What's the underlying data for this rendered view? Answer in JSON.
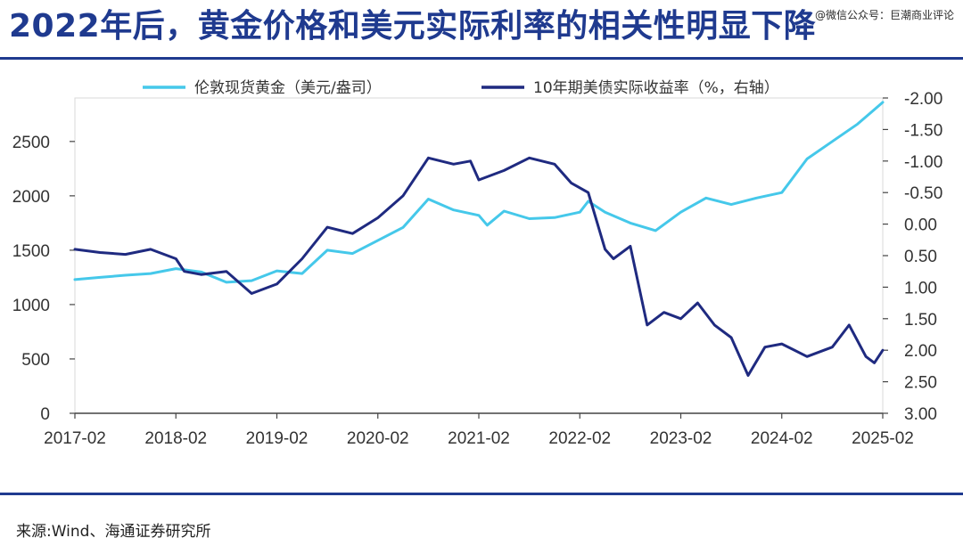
{
  "title": "2022年后，黄金价格和美元实际利率的相关性明显下降",
  "watermark": "@微信公众号：巨潮商业评论",
  "source": "来源:Wind、海通证券研究所",
  "colors": {
    "gold": "#45c8ea",
    "rate": "#1f2a80",
    "title": "#1f3a8f",
    "rule": "#1f3a8f"
  },
  "chart_data": {
    "type": "line",
    "legend_position": "top",
    "grid": false,
    "x_ticks": [
      "2017-02",
      "2018-02",
      "2019-02",
      "2020-02",
      "2021-02",
      "2022-02",
      "2023-02",
      "2024-02",
      "2025-02"
    ],
    "x_range": [
      "2017-02",
      "2025-02"
    ],
    "y_left": {
      "ticks": [
        "0",
        "500",
        "1000",
        "1500",
        "2000",
        "2500"
      ],
      "range": [
        0,
        2900
      ]
    },
    "y_right": {
      "ticks": [
        "-2.00",
        "-1.50",
        "-1.00",
        "-0.50",
        "0.00",
        "0.50",
        "1.00",
        "1.50",
        "2.00",
        "2.50",
        "3.00"
      ],
      "range": [
        -2.0,
        3.0
      ],
      "inverted": true
    },
    "series": [
      {
        "name": "伦敦现货黄金（美元/盎司）",
        "axis": "left",
        "color": "#45c8ea",
        "points": [
          [
            "2017-02",
            1230
          ],
          [
            "2017-05",
            1250
          ],
          [
            "2017-08",
            1270
          ],
          [
            "2017-11",
            1285
          ],
          [
            "2018-02",
            1330
          ],
          [
            "2018-05",
            1300
          ],
          [
            "2018-08",
            1205
          ],
          [
            "2018-11",
            1220
          ],
          [
            "2019-02",
            1310
          ],
          [
            "2019-05",
            1285
          ],
          [
            "2019-08",
            1500
          ],
          [
            "2019-11",
            1470
          ],
          [
            "2020-02",
            1590
          ],
          [
            "2020-05",
            1710
          ],
          [
            "2020-08",
            1970
          ],
          [
            "2020-11",
            1870
          ],
          [
            "2021-02",
            1820
          ],
          [
            "2021-03",
            1730
          ],
          [
            "2021-05",
            1860
          ],
          [
            "2021-08",
            1790
          ],
          [
            "2021-11",
            1800
          ],
          [
            "2022-02",
            1850
          ],
          [
            "2022-03",
            1950
          ],
          [
            "2022-05",
            1850
          ],
          [
            "2022-08",
            1750
          ],
          [
            "2022-11",
            1680
          ],
          [
            "2023-02",
            1850
          ],
          [
            "2023-05",
            1980
          ],
          [
            "2023-08",
            1920
          ],
          [
            "2023-11",
            1980
          ],
          [
            "2024-02",
            2030
          ],
          [
            "2024-05",
            2340
          ],
          [
            "2024-08",
            2500
          ],
          [
            "2024-11",
            2660
          ],
          [
            "2025-02",
            2860
          ]
        ]
      },
      {
        "name": "10年期美债实际收益率（%，右轴）",
        "axis": "right",
        "color": "#1f2a80",
        "points": [
          [
            "2017-02",
            0.4
          ],
          [
            "2017-05",
            0.45
          ],
          [
            "2017-08",
            0.48
          ],
          [
            "2017-11",
            0.4
          ],
          [
            "2018-02",
            0.55
          ],
          [
            "2018-03",
            0.75
          ],
          [
            "2018-05",
            0.8
          ],
          [
            "2018-08",
            0.75
          ],
          [
            "2018-11",
            1.1
          ],
          [
            "2019-02",
            0.95
          ],
          [
            "2019-05",
            0.55
          ],
          [
            "2019-08",
            0.05
          ],
          [
            "2019-11",
            0.15
          ],
          [
            "2020-02",
            -0.1
          ],
          [
            "2020-05",
            -0.45
          ],
          [
            "2020-08",
            -1.05
          ],
          [
            "2020-11",
            -0.95
          ],
          [
            "2021-01",
            -1.0
          ],
          [
            "2021-02",
            -0.7
          ],
          [
            "2021-05",
            -0.85
          ],
          [
            "2021-08",
            -1.05
          ],
          [
            "2021-11",
            -0.95
          ],
          [
            "2022-01",
            -0.65
          ],
          [
            "2022-03",
            -0.5
          ],
          [
            "2022-05",
            0.4
          ],
          [
            "2022-06",
            0.55
          ],
          [
            "2022-08",
            0.35
          ],
          [
            "2022-10",
            1.6
          ],
          [
            "2022-12",
            1.4
          ],
          [
            "2023-02",
            1.5
          ],
          [
            "2023-04",
            1.25
          ],
          [
            "2023-06",
            1.6
          ],
          [
            "2023-08",
            1.8
          ],
          [
            "2023-10",
            2.4
          ],
          [
            "2023-12",
            1.95
          ],
          [
            "2024-02",
            1.9
          ],
          [
            "2024-05",
            2.1
          ],
          [
            "2024-08",
            1.95
          ],
          [
            "2024-10",
            1.6
          ],
          [
            "2024-12",
            2.1
          ],
          [
            "2025-01",
            2.2
          ],
          [
            "2025-02",
            2.0
          ]
        ]
      }
    ]
  }
}
